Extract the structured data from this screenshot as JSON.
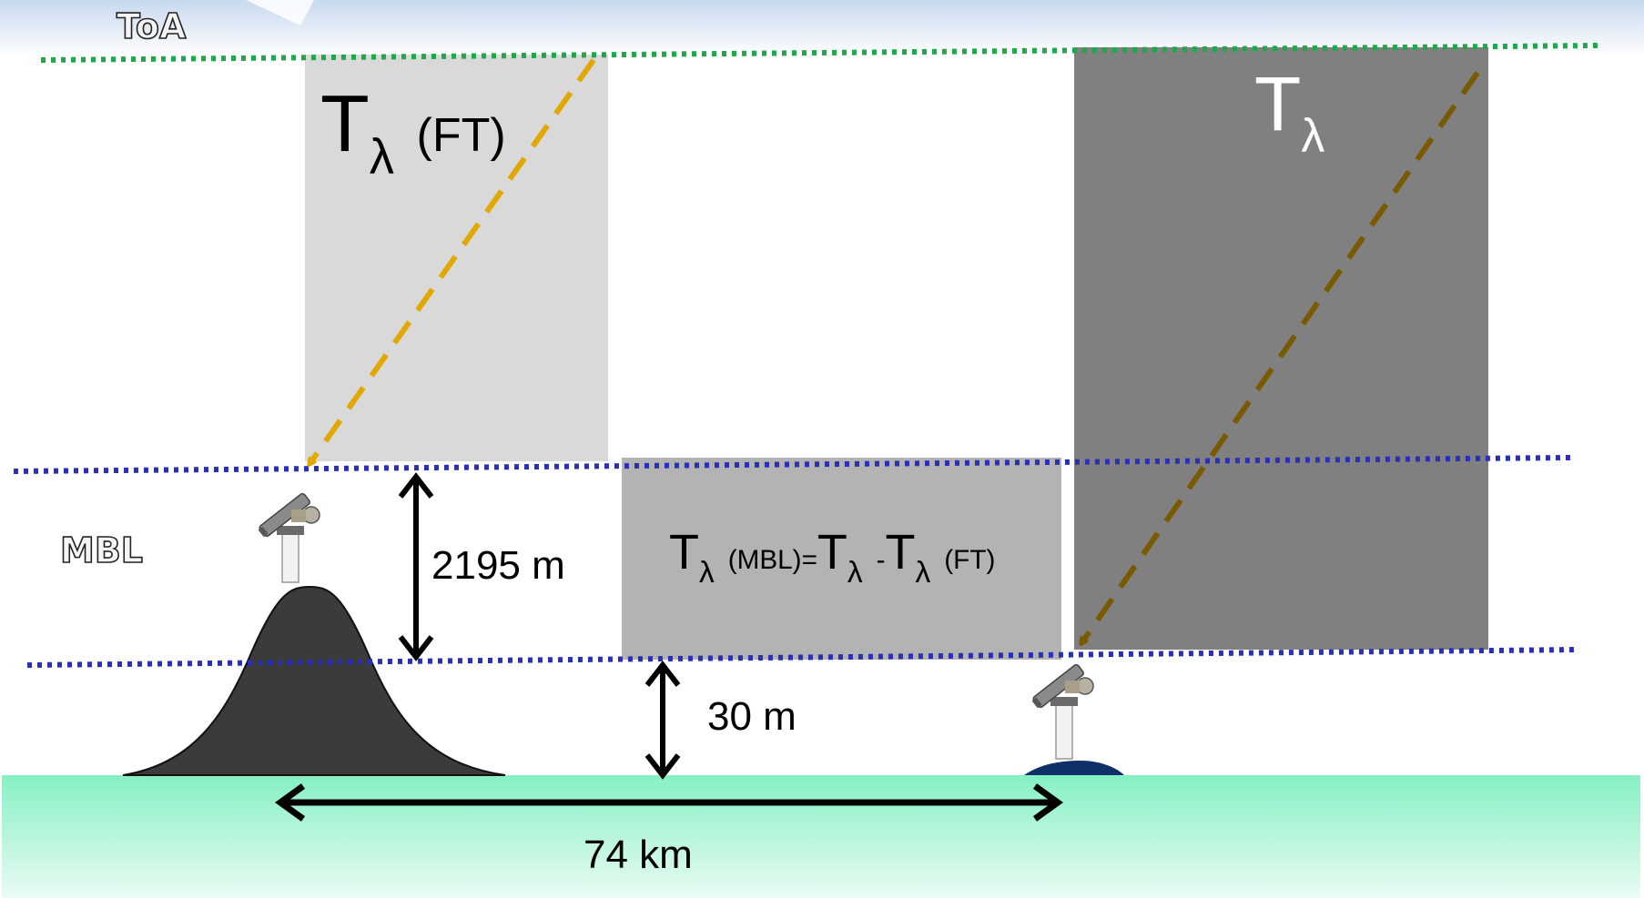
{
  "labels": {
    "toa": "ToA",
    "mbl": "MBL",
    "t_ft": {
      "main": "T",
      "sub": "λ",
      "suffix": "(FT)"
    },
    "t_total": {
      "main": "T",
      "sub": "λ"
    },
    "formula": {
      "t1": "T",
      "s1": "λ",
      "p1": "(MBL)=",
      "t2": "T",
      "s2": "λ",
      "p2": "-",
      "t3": "T",
      "s3": "λ",
      "p3": "(FT)"
    },
    "height_mbl": "2195 m",
    "height_low": "30 m",
    "distance": "74 km"
  },
  "colors": {
    "toa_line": "#1fa84a",
    "mbl_line": "#2a2fb8",
    "box_ft": "#d9d9d9",
    "box_mbl": "#b3b3b3",
    "box_total": "#808080",
    "arrow_ft": "#e0a800",
    "arrow_total": "#7a5a00",
    "mountain": "#3b3b3b",
    "island": "#10306a",
    "sea_top": "#86f0c4",
    "sea_bottom": "#e8fbf2"
  },
  "icons": [
    "photometer-icon",
    "photometer-icon"
  ]
}
